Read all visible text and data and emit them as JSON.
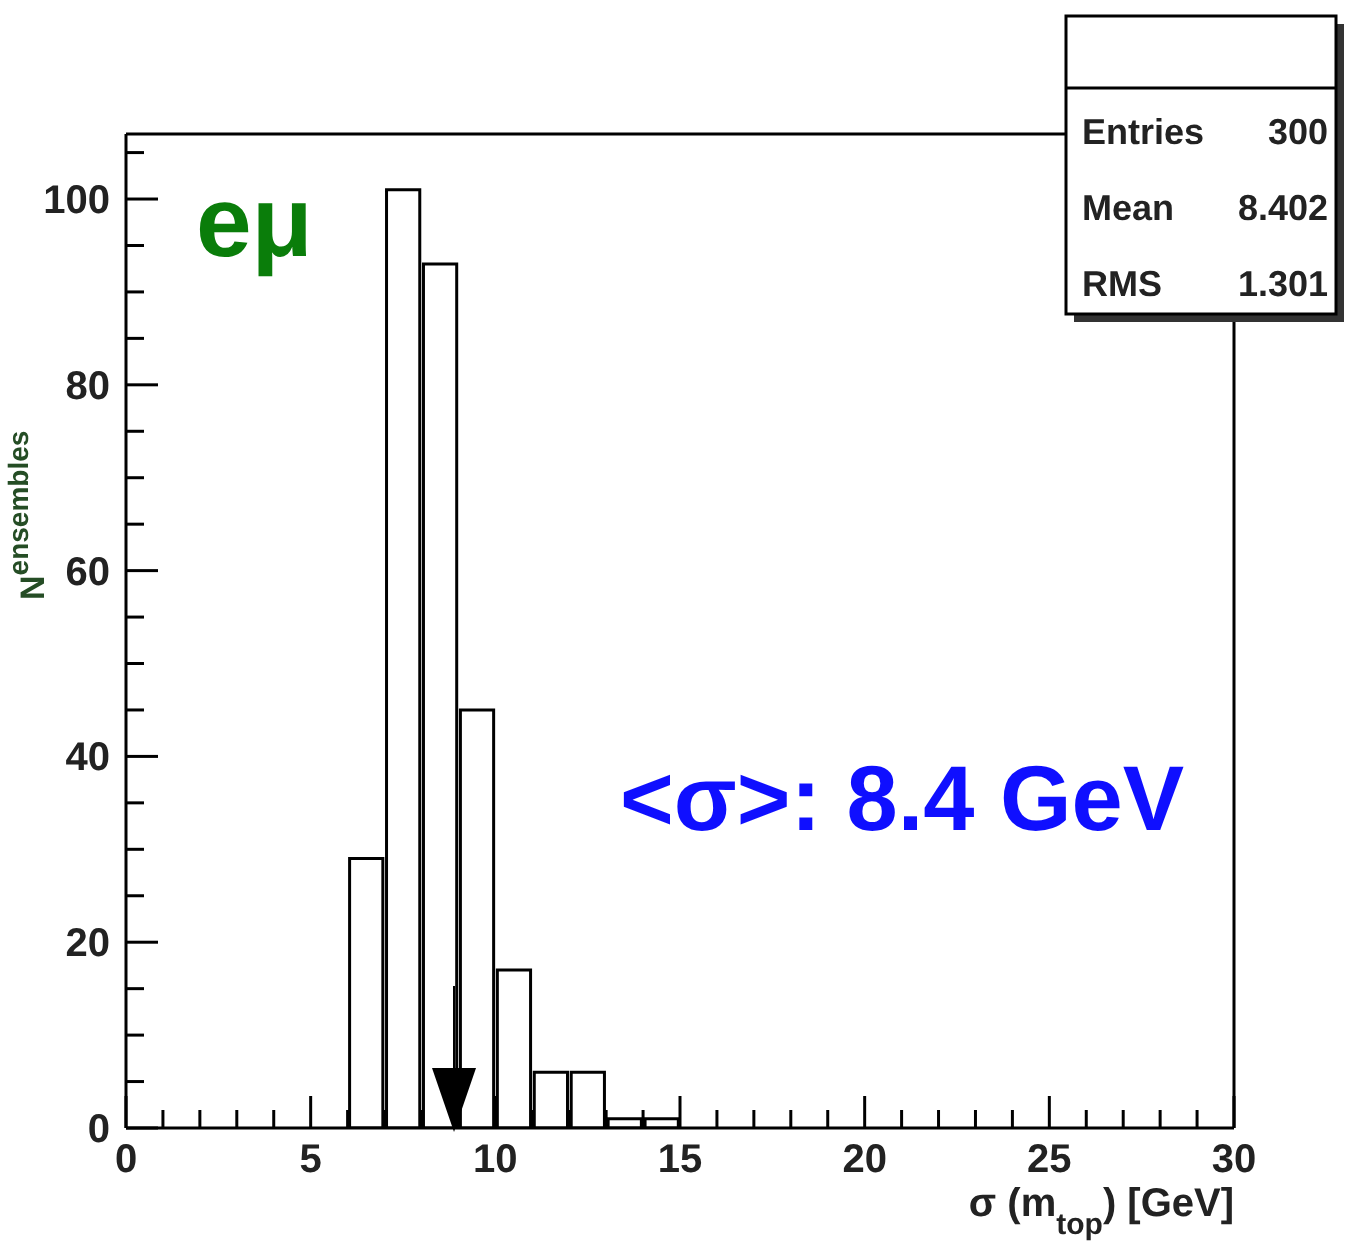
{
  "chart_data": {
    "type": "histogram",
    "ylabel": "N$^{ensembles}$",
    "xlabel": "σ (m$_{top}$) [GeV]",
    "bins": [
      0,
      1,
      2,
      3,
      4,
      5,
      6,
      7,
      8,
      9,
      10,
      11,
      12,
      13,
      14,
      15,
      16,
      17,
      18,
      19,
      20,
      21,
      22,
      23,
      24,
      25,
      26,
      27,
      28,
      29,
      30
    ],
    "values": [
      0,
      0,
      0,
      0,
      0,
      0,
      29,
      101,
      93,
      45,
      17,
      6,
      6,
      1,
      1,
      0,
      0,
      0,
      0,
      0,
      0,
      0,
      0,
      0,
      0,
      0,
      0,
      0,
      0,
      0
    ],
    "color": "#ffffff",
    "xlim": [
      0,
      30
    ],
    "xticks": [
      0,
      {
        "value": 1,
        "label": null
      },
      {
        "value": 2,
        "label": null
      },
      {
        "value": 3,
        "label": null
      },
      {
        "value": 4,
        "label": null
      },
      5,
      {
        "value": 6,
        "label": null
      },
      {
        "value": 7,
        "label": null
      },
      {
        "value": 8,
        "label": null
      },
      {
        "value": 9,
        "label": null
      },
      10,
      {
        "value": 11,
        "label": null
      },
      {
        "value": 12,
        "label": null
      },
      {
        "value": 13,
        "label": null
      },
      {
        "value": 14,
        "label": null
      },
      15,
      {
        "value": 16,
        "label": null
      },
      {
        "value": 17,
        "label": null
      },
      {
        "value": 18,
        "label": null
      },
      {
        "value": 19,
        "label": null
      },
      20,
      {
        "value": 21,
        "label": null
      },
      {
        "value": 22,
        "label": null
      },
      {
        "value": 23,
        "label": null
      },
      {
        "value": 24,
        "label": null
      },
      25,
      {
        "value": 26,
        "label": null
      },
      {
        "value": 27,
        "label": null
      },
      {
        "value": 28,
        "label": null
      },
      {
        "value": 29,
        "label": null
      },
      30
    ],
    "ylim": [
      0,
      107
    ],
    "yticks": [
      0,
      {
        "value": 5,
        "label": null
      },
      {
        "value": 10,
        "label": null
      },
      {
        "value": 15,
        "label": null
      },
      20,
      {
        "value": 25,
        "label": null
      },
      {
        "value": 30,
        "label": null
      },
      {
        "value": 35,
        "label": null
      },
      40,
      {
        "value": 45,
        "label": null
      },
      {
        "value": 50,
        "label": null
      },
      {
        "value": 55,
        "label": null
      },
      60,
      {
        "value": 65,
        "label": null
      },
      {
        "value": 70,
        "label": null
      },
      {
        "value": 75,
        "label": null
      },
      80,
      {
        "value": 85,
        "label": null
      },
      {
        "value": 90,
        "label": null
      },
      {
        "value": 95,
        "label": null
      },
      100,
      {
        "value": 105,
        "label": null
      }
    ],
    "annotations": [
      "eμ",
      "<σ>: 8.4 GeV",
      "Entries",
      "300",
      "Mean",
      "8.402",
      "RMS",
      "1.301"
    ]
  }
}
